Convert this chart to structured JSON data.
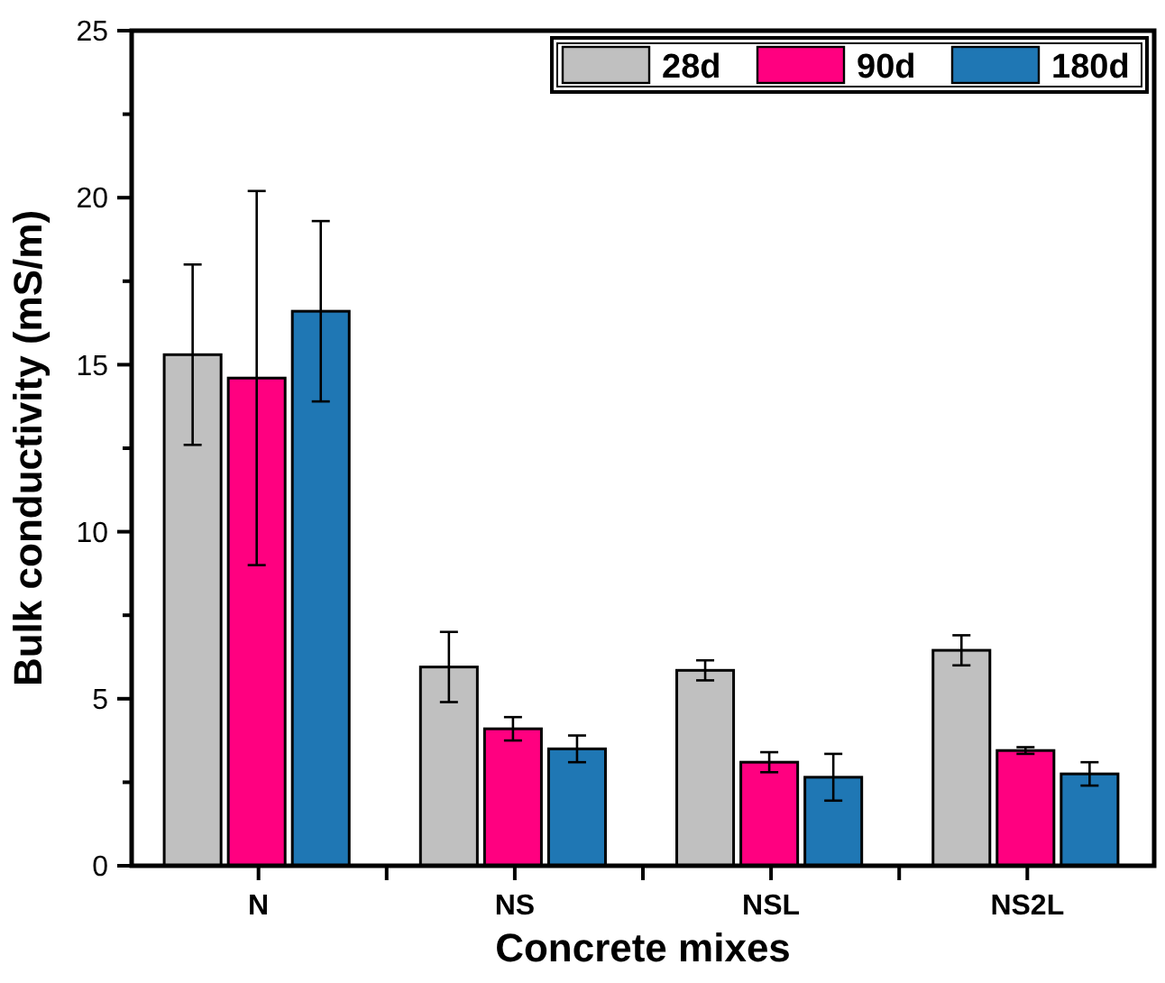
{
  "chart_data": {
    "type": "bar",
    "xlabel": "Concrete mixes",
    "ylabel": "Bulk conductivity (mS/m)",
    "categories": [
      "N",
      "NS",
      "NSL",
      "NS2L"
    ],
    "series": [
      {
        "name": "28d",
        "color": "#c0c0c0",
        "values": [
          15.3,
          5.95,
          5.85,
          6.45
        ],
        "errors": [
          2.7,
          1.05,
          0.3,
          0.45
        ]
      },
      {
        "name": "90d",
        "color": "#ff0080",
        "values": [
          14.6,
          4.1,
          3.1,
          3.45
        ],
        "errors": [
          5.6,
          0.35,
          0.3,
          0.1
        ]
      },
      {
        "name": "180d",
        "color": "#1f77b4",
        "values": [
          16.6,
          3.5,
          2.65,
          2.75
        ],
        "errors": [
          2.7,
          0.4,
          0.7,
          0.35
        ]
      }
    ],
    "ylim": [
      0,
      25
    ],
    "yticks": [
      0,
      {
        "value": 2.5,
        "label": null
      },
      5,
      {
        "value": 7.5,
        "label": null
      },
      10,
      {
        "value": 12.5,
        "label": null
      },
      15,
      {
        "value": 17.5,
        "label": null
      },
      20,
      {
        "value": 22.5,
        "label": null
      },
      25
    ],
    "grid": false,
    "legend": "top right"
  }
}
